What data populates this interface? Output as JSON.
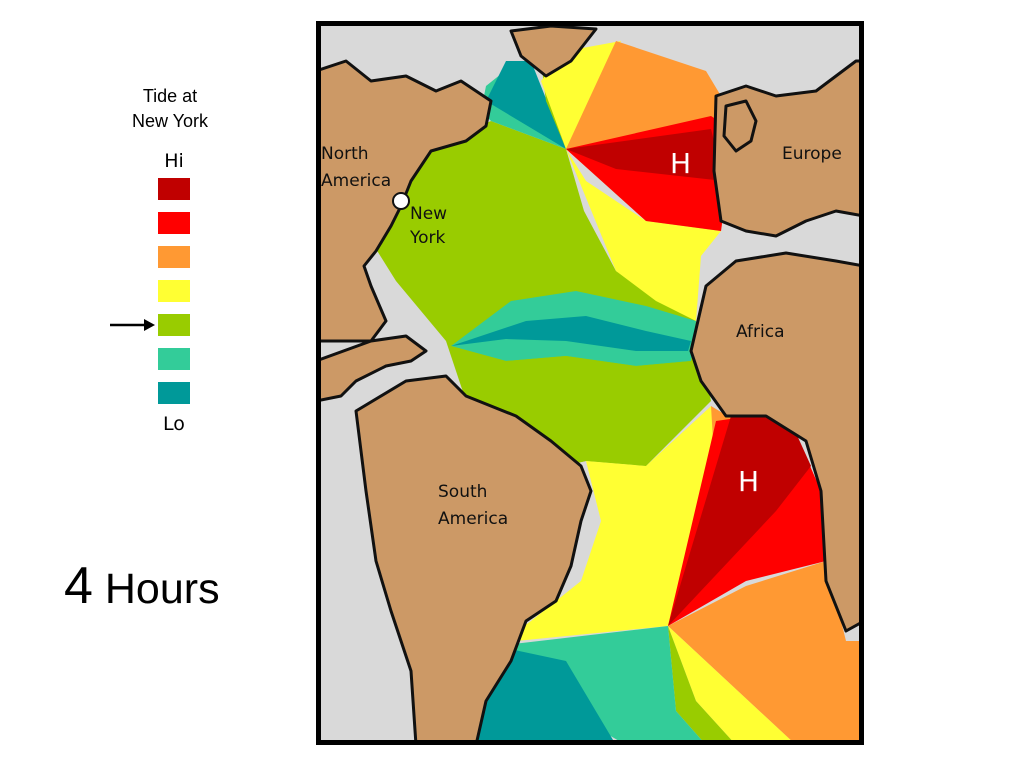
{
  "legend": {
    "title_line1": "Tide at",
    "title_line2": "New York",
    "hi_label": "Hi",
    "lo_label": "Lo",
    "levels": [
      "#c00000",
      "#ff0000",
      "#ff9933",
      "#ffff33",
      "#99cc00",
      "#33cc99",
      "#009999"
    ],
    "current_level_index": 4
  },
  "time": {
    "value": "4",
    "unit": "Hours"
  },
  "map": {
    "labels": {
      "north_america_1": "North",
      "north_america_2": "America",
      "new_york_1": "New",
      "new_york_2": "York",
      "europe": "Europe",
      "africa": "Africa",
      "south_america_1": "South",
      "south_america_2": "America"
    },
    "high_tide_markers": [
      "H",
      "H"
    ],
    "colors": {
      "land": "#cc9966",
      "other_water": "#d9d9d9",
      "frame": "#000000"
    }
  }
}
